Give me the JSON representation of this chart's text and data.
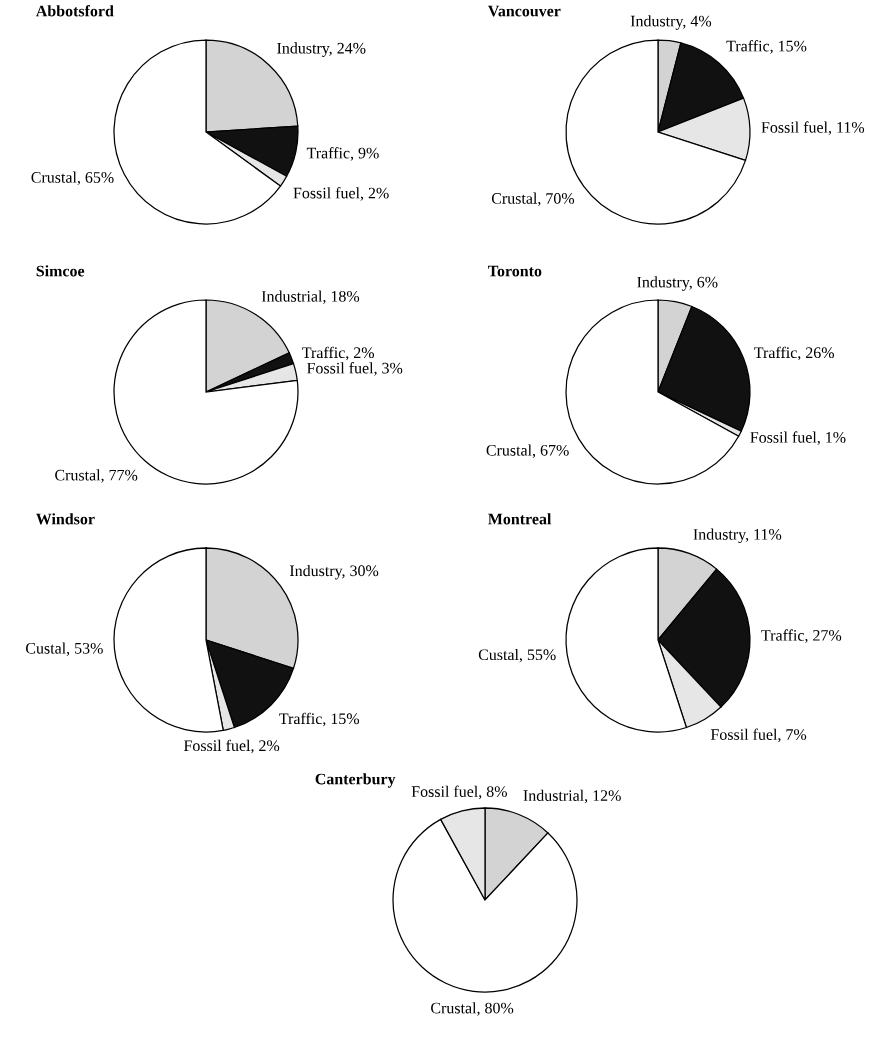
{
  "chart_data": [
    {
      "type": "pie",
      "title": "Abbotsford",
      "categories": [
        "Industry",
        "Traffic",
        "Fossil fuel",
        "Crustal"
      ],
      "values": [
        24,
        9,
        2,
        65
      ],
      "value_labels": [
        "24%",
        "9%",
        "2%",
        "65%"
      ],
      "colors": [
        "#d3d3d3",
        "#111111",
        "#e6e6e6",
        "#ffffff"
      ]
    },
    {
      "type": "pie",
      "title": "Vancouver",
      "categories": [
        "Industry",
        "Traffic",
        "Fossil fuel",
        "Crustal"
      ],
      "values": [
        4,
        15,
        11,
        70
      ],
      "value_labels": [
        "4%",
        "15%",
        "11%",
        "70%"
      ],
      "colors": [
        "#d3d3d3",
        "#111111",
        "#e6e6e6",
        "#ffffff"
      ]
    },
    {
      "type": "pie",
      "title": "Simcoe",
      "categories": [
        "Industrial",
        "Traffic",
        "Fossil fuel",
        "Crustal"
      ],
      "values": [
        18,
        2,
        3,
        77
      ],
      "value_labels": [
        "18%",
        "2%",
        "3%",
        "77%"
      ],
      "colors": [
        "#d3d3d3",
        "#111111",
        "#e6e6e6",
        "#ffffff"
      ]
    },
    {
      "type": "pie",
      "title": "Toronto",
      "categories": [
        "Industry",
        "Traffic",
        "Fossil fuel",
        "Crustal"
      ],
      "values": [
        6,
        26,
        1,
        67
      ],
      "value_labels": [
        "6%",
        "26%",
        "1%",
        "67%"
      ],
      "colors": [
        "#d3d3d3",
        "#111111",
        "#e6e6e6",
        "#ffffff"
      ]
    },
    {
      "type": "pie",
      "title": "Windsor",
      "categories": [
        "Industry",
        "Traffic",
        "Fossil fuel",
        "Custal"
      ],
      "values": [
        30,
        15,
        2,
        53
      ],
      "value_labels": [
        "30%",
        "15%",
        "2%",
        "53%"
      ],
      "colors": [
        "#d3d3d3",
        "#111111",
        "#e6e6e6",
        "#ffffff"
      ]
    },
    {
      "type": "pie",
      "title": "Montreal",
      "categories": [
        "Industry",
        "Traffic",
        "Fossil fuel",
        "Custal"
      ],
      "values": [
        11,
        27,
        7,
        55
      ],
      "value_labels": [
        "11%",
        "27%",
        "7%",
        "55%"
      ],
      "colors": [
        "#d3d3d3",
        "#111111",
        "#e6e6e6",
        "#ffffff"
      ]
    },
    {
      "type": "pie",
      "title": "Canterbury",
      "categories": [
        "Industrial",
        "Crustal",
        "Fossil fuel"
      ],
      "values": [
        12,
        80,
        8
      ],
      "value_labels": [
        "12%",
        "80%",
        "8%"
      ],
      "colors": [
        "#d3d3d3",
        "#ffffff",
        "#e6e6e6"
      ]
    }
  ]
}
